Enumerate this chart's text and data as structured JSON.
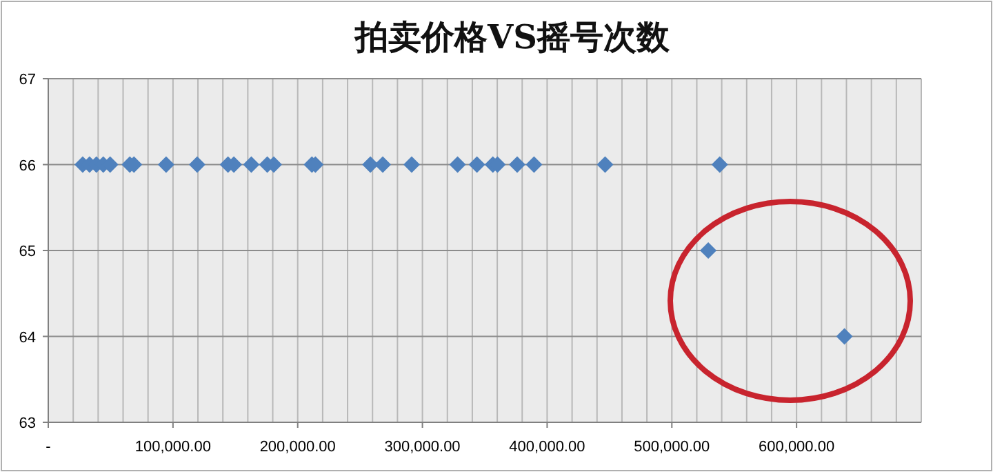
{
  "chart_data": {
    "type": "scatter",
    "title": "拍卖价格VS摇号次数",
    "marker": "diamond",
    "grid": true,
    "x": [
      27600,
      33100,
      38600,
      44100,
      49600,
      65400,
      68700,
      94500,
      119400,
      144100,
      148800,
      162800,
      175600,
      180800,
      211400,
      214200,
      258300,
      268200,
      291400,
      328200,
      343700,
      356500,
      360200,
      376000,
      389500,
      446500,
      538400,
      529200,
      638400
    ],
    "values": [
      66,
      66,
      66,
      66,
      66,
      66,
      66,
      66,
      66,
      66,
      66,
      66,
      66,
      66,
      66,
      66,
      66,
      66,
      66,
      66,
      66,
      66,
      66,
      66,
      66,
      66,
      66,
      65,
      64
    ],
    "color": "#4f81bd",
    "xlim": [
      0,
      700000
    ],
    "xticks": [
      {
        "value": 0,
        "label": "-"
      },
      {
        "value": 20000,
        "label": null
      },
      {
        "value": 40000,
        "label": null
      },
      {
        "value": 60000,
        "label": null
      },
      {
        "value": 80000,
        "label": null
      },
      {
        "value": 100000,
        "label": "100,000.00"
      },
      {
        "value": 120000,
        "label": null
      },
      {
        "value": 140000,
        "label": null
      },
      {
        "value": 160000,
        "label": null
      },
      {
        "value": 180000,
        "label": null
      },
      {
        "value": 200000,
        "label": "200,000.00"
      },
      {
        "value": 220000,
        "label": null
      },
      {
        "value": 240000,
        "label": null
      },
      {
        "value": 260000,
        "label": null
      },
      {
        "value": 280000,
        "label": null
      },
      {
        "value": 300000,
        "label": "300,000.00"
      },
      {
        "value": 320000,
        "label": null
      },
      {
        "value": 340000,
        "label": null
      },
      {
        "value": 360000,
        "label": null
      },
      {
        "value": 380000,
        "label": null
      },
      {
        "value": 400000,
        "label": "400,000.00"
      },
      {
        "value": 420000,
        "label": null
      },
      {
        "value": 440000,
        "label": null
      },
      {
        "value": 460000,
        "label": null
      },
      {
        "value": 480000,
        "label": null
      },
      {
        "value": 500000,
        "label": "500,000.00"
      },
      {
        "value": 520000,
        "label": null
      },
      {
        "value": 540000,
        "label": null
      },
      {
        "value": 560000,
        "label": null
      },
      {
        "value": 580000,
        "label": null
      },
      {
        "value": 600000,
        "label": "600,000.00"
      },
      {
        "value": 620000,
        "label": null
      },
      {
        "value": 640000,
        "label": null
      },
      {
        "value": 660000,
        "label": null
      },
      {
        "value": 680000,
        "label": null
      },
      {
        "value": 700000,
        "label": null
      }
    ],
    "ylim": [
      63,
      67
    ],
    "yticks": [
      63,
      64,
      65,
      66,
      67
    ]
  }
}
